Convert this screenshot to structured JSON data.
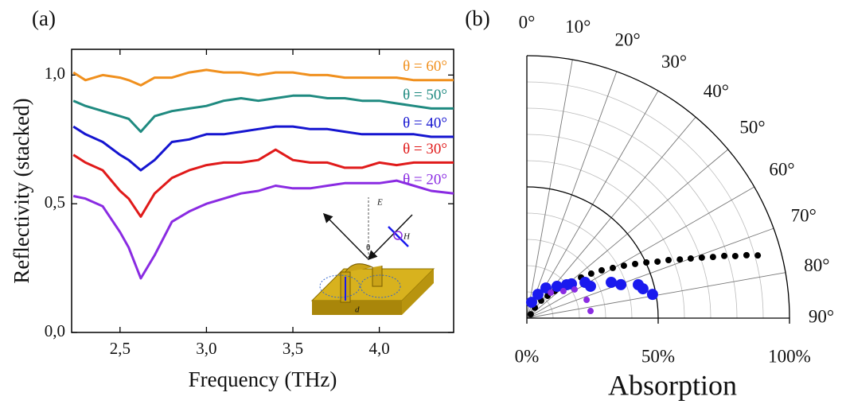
{
  "chart_data": [
    {
      "type": "line",
      "panel_label": "(a)",
      "xlabel": "Frequency (THz)",
      "ylabel": "Reflectivity (stacked)",
      "x": [
        2.23,
        2.3,
        2.4,
        2.5,
        2.55,
        2.62,
        2.7,
        2.8,
        2.9,
        3.0,
        3.1,
        3.2,
        3.3,
        3.4,
        3.5,
        3.6,
        3.7,
        3.8,
        3.9,
        4.0,
        4.1,
        4.2,
        4.3,
        4.43
      ],
      "xlim": [
        2.22,
        4.43
      ],
      "xticks": [
        {
          "value": 2.5,
          "label": "2,5"
        },
        {
          "value": 3.0,
          "label": "3,0"
        },
        {
          "value": 3.5,
          "label": "3,5"
        },
        {
          "value": 4.0,
          "label": "4,0"
        }
      ],
      "ylim": [
        0,
        1.1
      ],
      "yticks": [
        {
          "value": 0,
          "label": "0,0"
        },
        {
          "value": 0.5,
          "label": "0,5"
        },
        {
          "value": 1.0,
          "label": "1,0"
        }
      ],
      "series": [
        {
          "name": "θ = 60°",
          "color": "#f0901e",
          "values": [
            1.01,
            0.98,
            1.0,
            0.99,
            0.98,
            0.96,
            0.99,
            0.99,
            1.01,
            1.02,
            1.01,
            1.01,
            1.0,
            1.01,
            1.01,
            1.0,
            1.0,
            0.99,
            0.99,
            0.99,
            0.99,
            0.98,
            0.98,
            0.98
          ]
        },
        {
          "name": "θ = 50°",
          "color": "#1f8a80",
          "values": [
            0.9,
            0.88,
            0.86,
            0.84,
            0.83,
            0.78,
            0.84,
            0.86,
            0.87,
            0.88,
            0.9,
            0.91,
            0.9,
            0.91,
            0.92,
            0.92,
            0.91,
            0.91,
            0.9,
            0.9,
            0.89,
            0.88,
            0.87,
            0.87
          ]
        },
        {
          "name": "θ = 40°",
          "color": "#1515d0",
          "values": [
            0.8,
            0.77,
            0.74,
            0.69,
            0.67,
            0.63,
            0.67,
            0.74,
            0.75,
            0.77,
            0.77,
            0.78,
            0.79,
            0.8,
            0.8,
            0.79,
            0.79,
            0.78,
            0.77,
            0.77,
            0.77,
            0.77,
            0.76,
            0.76
          ]
        },
        {
          "name": "θ = 30°",
          "color": "#e01a1a",
          "values": [
            0.69,
            0.66,
            0.63,
            0.55,
            0.52,
            0.45,
            0.54,
            0.6,
            0.63,
            0.65,
            0.66,
            0.66,
            0.67,
            0.71,
            0.67,
            0.66,
            0.66,
            0.64,
            0.64,
            0.66,
            0.65,
            0.66,
            0.66,
            0.66
          ]
        },
        {
          "name": "θ = 20°",
          "color": "#8a2be2",
          "values": [
            0.53,
            0.52,
            0.49,
            0.39,
            0.33,
            0.21,
            0.3,
            0.43,
            0.47,
            0.5,
            0.52,
            0.54,
            0.55,
            0.57,
            0.56,
            0.56,
            0.57,
            0.58,
            0.58,
            0.58,
            0.59,
            0.57,
            0.55,
            0.54
          ]
        }
      ],
      "inset_labels": [
        "θ",
        "E",
        "H",
        "d"
      ]
    },
    {
      "type": "polar",
      "panel_label": "(b)",
      "xlabel": "Absorption",
      "rlim": [
        0,
        100
      ],
      "rticks": [
        {
          "value": 0,
          "label": "0%"
        },
        {
          "value": 50,
          "label": "50%"
        },
        {
          "value": 100,
          "label": "100%"
        }
      ],
      "rgrid": [
        10,
        20,
        30,
        40,
        60,
        70,
        80,
        90
      ],
      "thetalim": [
        0,
        90
      ],
      "thetaticks": [
        {
          "value": 0,
          "label": "0°"
        },
        {
          "value": 10,
          "label": "10°"
        },
        {
          "value": 20,
          "label": "20°"
        },
        {
          "value": 30,
          "label": "30°"
        },
        {
          "value": 40,
          "label": "40°"
        },
        {
          "value": 50,
          "label": "50°"
        },
        {
          "value": 60,
          "label": "60°"
        },
        {
          "value": 70,
          "label": "70°"
        },
        {
          "value": 80,
          "label": "80°"
        },
        {
          "value": 90,
          "label": "90°"
        }
      ],
      "series": [
        {
          "color": "#000000",
          "size": 4,
          "theta": [
            45,
            37.6,
            39.3,
            42.9,
            45.8,
            48.4,
            50.6,
            53.1,
            55.3,
            57.4,
            59.7,
            61.6,
            63.4,
            65.0,
            66.6,
            67.7,
            69.0,
            70.0,
            70.9,
            71.8,
            72.5,
            73.4,
            74.0,
            74.8
          ],
          "r": [
            2.1,
            5.0,
            8.6,
            11.6,
            14.8,
            18.2,
            22.0,
            25.8,
            29.8,
            33.8,
            37.9,
            42.0,
            46.1,
            50.2,
            54.2,
            58.3,
            62.4,
            66.4,
            70.5,
            74.6,
            78.8,
            82.8,
            87.0,
            91.1
          ]
        },
        {
          "color": "#1a1aee",
          "size": 7,
          "theta": [
            16.7,
            25.0,
            32.3,
            43.5,
            50.0,
            52.5,
            58.4,
            63.4,
            67.0,
            70.4,
            73.3,
            75.8,
            79.3
          ],
          "r": [
            6.3,
            10.0,
            13.6,
            16.7,
            19.8,
            21.4,
            26.0,
            27.1,
            34.9,
            38.0,
            44.3,
            45.6,
            48.7
          ]
        },
        {
          "color": "#8a2be2",
          "size": 4,
          "theta": [
            43.2,
            53.5,
            59.0,
            73.0,
            83.6
          ],
          "r": [
            13.3,
            17.3,
            21.2,
            23.8,
            24.4
          ]
        }
      ]
    }
  ]
}
